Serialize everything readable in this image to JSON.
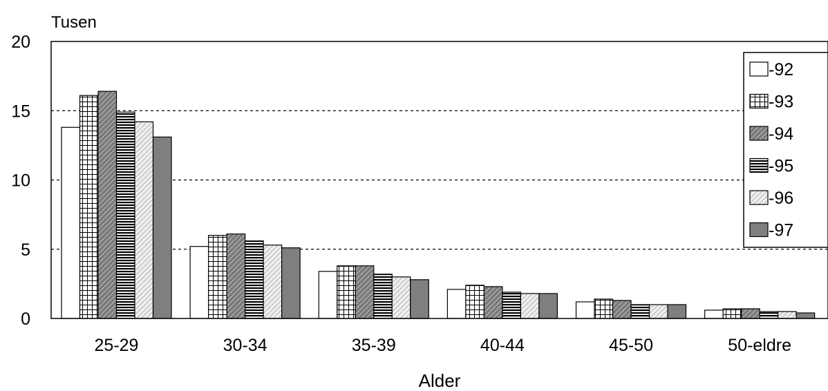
{
  "chart_data": {
    "type": "bar",
    "unit_label": "Tusen",
    "xlabel": "Alder",
    "categories": [
      "25-29",
      "30-34",
      "35-39",
      "40-44",
      "45-50",
      "50-eldre"
    ],
    "ylim": [
      0,
      20
    ],
    "yticks": [
      0,
      5,
      10,
      15,
      20
    ],
    "grid": "dashed horizontal at 5, 10, 15",
    "legend_position": "top-right",
    "series": [
      {
        "name": "-92",
        "pattern": "white",
        "values": [
          13.8,
          5.2,
          3.4,
          2.1,
          1.2,
          0.6
        ]
      },
      {
        "name": "-93",
        "pattern": "grid",
        "values": [
          16.1,
          6.0,
          3.8,
          2.4,
          1.4,
          0.7
        ]
      },
      {
        "name": "-94",
        "pattern": "dark-diagonal",
        "values": [
          16.4,
          6.1,
          3.8,
          2.3,
          1.3,
          0.7
        ]
      },
      {
        "name": "-95",
        "pattern": "horizontal",
        "values": [
          14.9,
          5.6,
          3.2,
          1.9,
          1.0,
          0.5
        ]
      },
      {
        "name": "-96",
        "pattern": "light-diagonal",
        "values": [
          14.2,
          5.3,
          3.0,
          1.8,
          1.0,
          0.5
        ]
      },
      {
        "name": "-97",
        "pattern": "solid-gray",
        "values": [
          13.1,
          5.1,
          2.8,
          1.8,
          1.0,
          0.4
        ]
      }
    ]
  }
}
